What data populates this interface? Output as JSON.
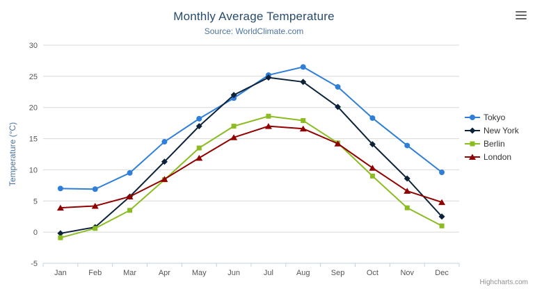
{
  "chart_data": {
    "type": "line",
    "title": "Monthly Average Temperature",
    "subtitle": "Source: WorldClimate.com",
    "categories": [
      "Jan",
      "Feb",
      "Mar",
      "Apr",
      "May",
      "Jun",
      "Jul",
      "Aug",
      "Sep",
      "Oct",
      "Nov",
      "Dec"
    ],
    "xlabel": "",
    "ylabel": "Temperature (°C)",
    "ylim": [
      -5,
      30
    ],
    "y_tick_interval": 5,
    "grid": true,
    "legend_position": "right",
    "series": [
      {
        "name": "Tokyo",
        "color": "#2f7ed8",
        "marker": "circle",
        "values": [
          7.0,
          6.9,
          9.5,
          14.5,
          18.2,
          21.5,
          25.2,
          26.5,
          23.3,
          18.3,
          13.9,
          9.6
        ]
      },
      {
        "name": "New York",
        "color": "#0d233a",
        "marker": "diamond",
        "values": [
          -0.2,
          0.8,
          5.7,
          11.3,
          17.0,
          22.0,
          24.8,
          24.1,
          20.1,
          14.1,
          8.6,
          2.5
        ]
      },
      {
        "name": "Berlin",
        "color": "#8bbc21",
        "marker": "square",
        "values": [
          -0.9,
          0.6,
          3.5,
          8.4,
          13.5,
          17.0,
          18.6,
          17.9,
          14.3,
          9.0,
          3.9,
          1.0
        ]
      },
      {
        "name": "London",
        "color": "#910000",
        "marker": "triangle",
        "values": [
          3.9,
          4.2,
          5.7,
          8.5,
          11.9,
          15.2,
          17.0,
          16.6,
          14.2,
          10.3,
          6.6,
          4.8
        ]
      }
    ],
    "credits": "Highcharts.com",
    "axis_colors": {
      "gridline": "#d8d8d8",
      "axis_line": "#c0d0e0"
    }
  }
}
